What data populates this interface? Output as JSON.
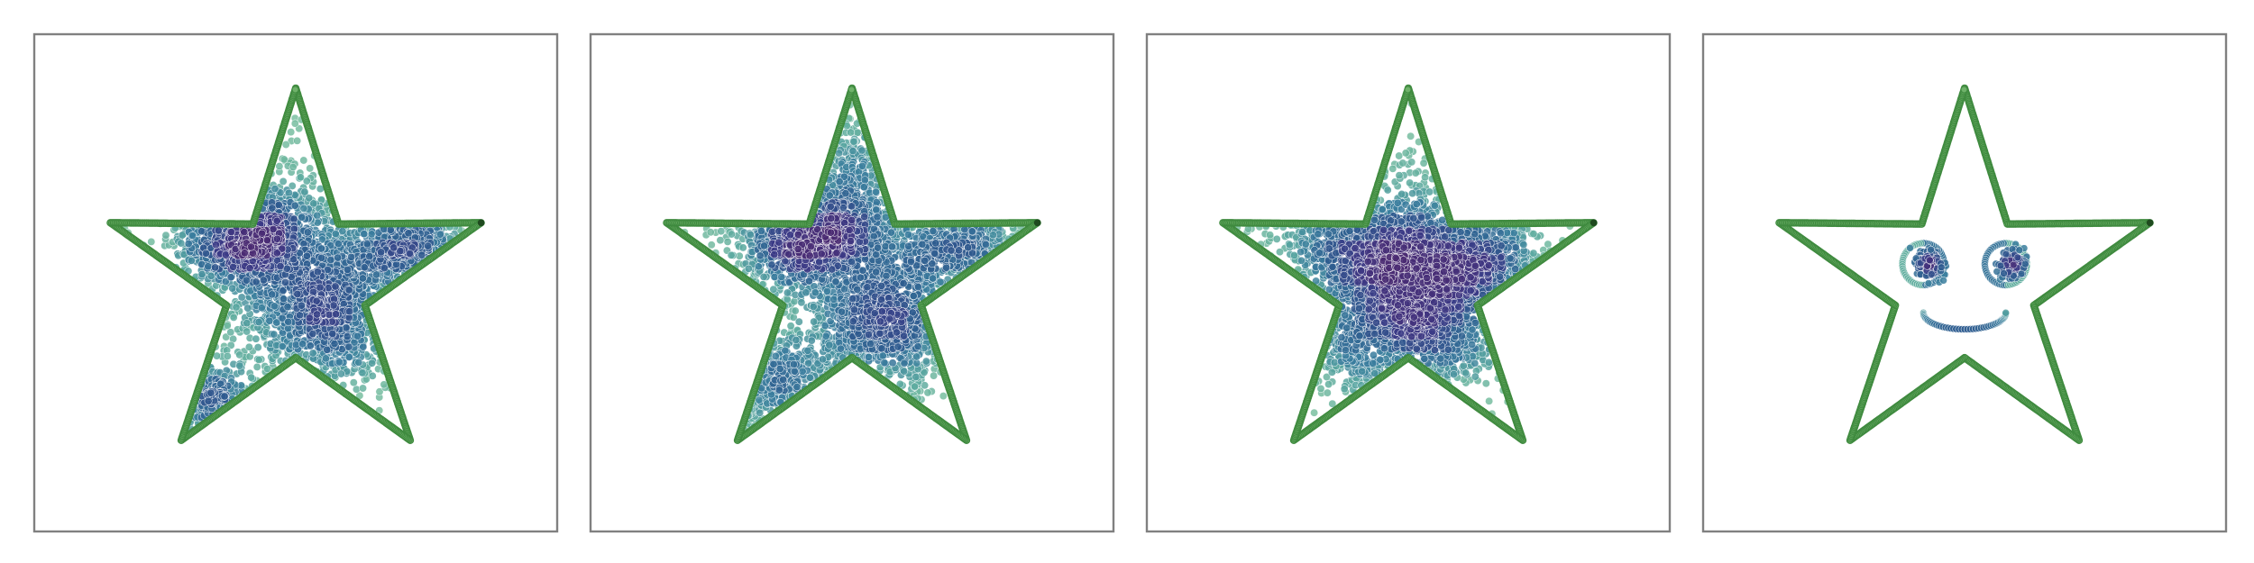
{
  "chart_data": [
    {
      "type": "scatter",
      "panel": 1,
      "xlim": [
        -3.2,
        3.2
      ],
      "ylim": [
        -3.2,
        3.2
      ],
      "grid": false,
      "boundary": {
        "shape": "star",
        "vertices": [
          [
            0.0,
            2.6
          ],
          [
            0.571,
            0.785
          ],
          [
            2.473,
            0.803
          ],
          [
            0.924,
            -0.301
          ],
          [
            1.528,
            -2.103
          ],
          [
            0.0,
            -1.0
          ],
          [
            -1.528,
            -2.103
          ],
          [
            -0.924,
            -0.301
          ],
          [
            -2.473,
            0.803
          ],
          [
            -0.571,
            0.785
          ]
        ],
        "color": "#4f9a4f"
      },
      "series": [
        {
          "center": [
            -0.6,
            0.6
          ],
          "spread": [
            0.48,
            0.32
          ],
          "n": 1050
        },
        {
          "center": [
            0.45,
            -0.4
          ],
          "spread": [
            0.48,
            0.45
          ],
          "n": 900
        },
        {
          "center": [
            1.5,
            0.45
          ],
          "spread": [
            0.45,
            0.2
          ],
          "n": 450
        },
        {
          "center": [
            -1.2,
            -1.55
          ],
          "spread": [
            0.3,
            0.22
          ],
          "n": 260
        },
        {
          "center": [
            0.0,
            0.2
          ],
          "spread": [
            1.1,
            1.05
          ],
          "n": 700
        }
      ],
      "colormap": [
        "#7fc3a0",
        "#5aa8a0",
        "#3b7f9e",
        "#2e5c8f",
        "#3b3a86",
        "#4a2a72"
      ]
    },
    {
      "type": "scatter",
      "panel": 2,
      "xlim": [
        -3.2,
        3.2
      ],
      "ylim": [
        -3.2,
        3.2
      ],
      "grid": false,
      "boundary": {
        "shape": "star",
        "vertices": [
          [
            0.0,
            2.6
          ],
          [
            0.571,
            0.785
          ],
          [
            2.473,
            0.803
          ],
          [
            0.924,
            -0.301
          ],
          [
            1.528,
            -2.103
          ],
          [
            0.0,
            -1.0
          ],
          [
            -1.528,
            -2.103
          ],
          [
            -0.924,
            -0.301
          ],
          [
            -2.473,
            0.803
          ],
          [
            -0.571,
            0.785
          ]
        ],
        "color": "#4f9a4f"
      },
      "series": [
        {
          "center": [
            -0.55,
            0.6
          ],
          "spread": [
            0.45,
            0.3
          ],
          "n": 1000
        },
        {
          "center": [
            0.5,
            -0.45
          ],
          "spread": [
            0.5,
            0.45
          ],
          "n": 900
        },
        {
          "center": [
            1.45,
            0.45
          ],
          "spread": [
            0.5,
            0.22
          ],
          "n": 420
        },
        {
          "center": [
            -1.0,
            -1.4
          ],
          "spread": [
            0.45,
            0.35
          ],
          "n": 330
        },
        {
          "center": [
            0.0,
            1.4
          ],
          "spread": [
            0.25,
            0.5
          ],
          "n": 250
        },
        {
          "center": [
            0.0,
            0.2
          ],
          "spread": [
            1.1,
            1.05
          ],
          "n": 650
        }
      ],
      "colormap": [
        "#7fc3a0",
        "#5aa8a0",
        "#3b7f9e",
        "#2e5c8f",
        "#3b3a86",
        "#4a2a72"
      ]
    },
    {
      "type": "scatter",
      "panel": 3,
      "xlim": [
        -3.2,
        3.2
      ],
      "ylim": [
        -3.2,
        3.2
      ],
      "grid": false,
      "boundary": {
        "shape": "star",
        "vertices": [
          [
            0.0,
            2.6
          ],
          [
            0.571,
            0.785
          ],
          [
            2.473,
            0.803
          ],
          [
            0.924,
            -0.301
          ],
          [
            1.528,
            -2.103
          ],
          [
            0.0,
            -1.0
          ],
          [
            -1.528,
            -2.103
          ],
          [
            -0.924,
            -0.301
          ],
          [
            -2.473,
            0.803
          ],
          [
            -0.571,
            0.785
          ]
        ],
        "color": "#4f9a4f"
      },
      "series": [
        {
          "center": [
            -0.45,
            0.45
          ],
          "spread": [
            0.6,
            0.4
          ],
          "n": 1100
        },
        {
          "center": [
            0.35,
            -0.35
          ],
          "spread": [
            0.55,
            0.5
          ],
          "n": 950
        },
        {
          "center": [
            0.95,
            0.35
          ],
          "spread": [
            0.45,
            0.3
          ],
          "n": 500
        },
        {
          "center": [
            -0.5,
            -0.7
          ],
          "spread": [
            0.6,
            0.4
          ],
          "n": 500
        },
        {
          "center": [
            0.0,
            0.2
          ],
          "spread": [
            1.05,
            0.95
          ],
          "n": 600
        }
      ],
      "colormap": [
        "#7fc3a0",
        "#5aa8a0",
        "#3b7f9e",
        "#2e5c8f",
        "#3b3a86",
        "#4a2a72"
      ]
    },
    {
      "type": "scatter",
      "panel": 4,
      "xlim": [
        -3.2,
        3.2
      ],
      "ylim": [
        -3.2,
        3.2
      ],
      "grid": false,
      "boundary": {
        "shape": "star",
        "vertices": [
          [
            0.0,
            2.6
          ],
          [
            0.571,
            0.785
          ],
          [
            2.473,
            0.803
          ],
          [
            0.924,
            -0.301
          ],
          [
            1.528,
            -2.103
          ],
          [
            0.0,
            -1.0
          ],
          [
            -1.528,
            -2.103
          ],
          [
            -0.924,
            -0.301
          ],
          [
            -2.473,
            0.803
          ],
          [
            -0.571,
            0.785
          ]
        ],
        "color": "#4f9a4f"
      },
      "face": {
        "left_eye": {
          "center": [
            -0.55,
            0.25
          ],
          "radius": 0.28
        },
        "right_eye": {
          "center": [
            0.55,
            0.25
          ],
          "radius": 0.28
        },
        "mouth": {
          "center": [
            0.0,
            -0.25
          ],
          "radius_x": 0.55,
          "radius_y": 0.22,
          "y_offset": -0.45
        }
      },
      "colormap": [
        "#7fc3a0",
        "#5aa8a0",
        "#3b7f9e",
        "#2e5c8f",
        "#3b3a86",
        "#4a2a72"
      ]
    }
  ]
}
